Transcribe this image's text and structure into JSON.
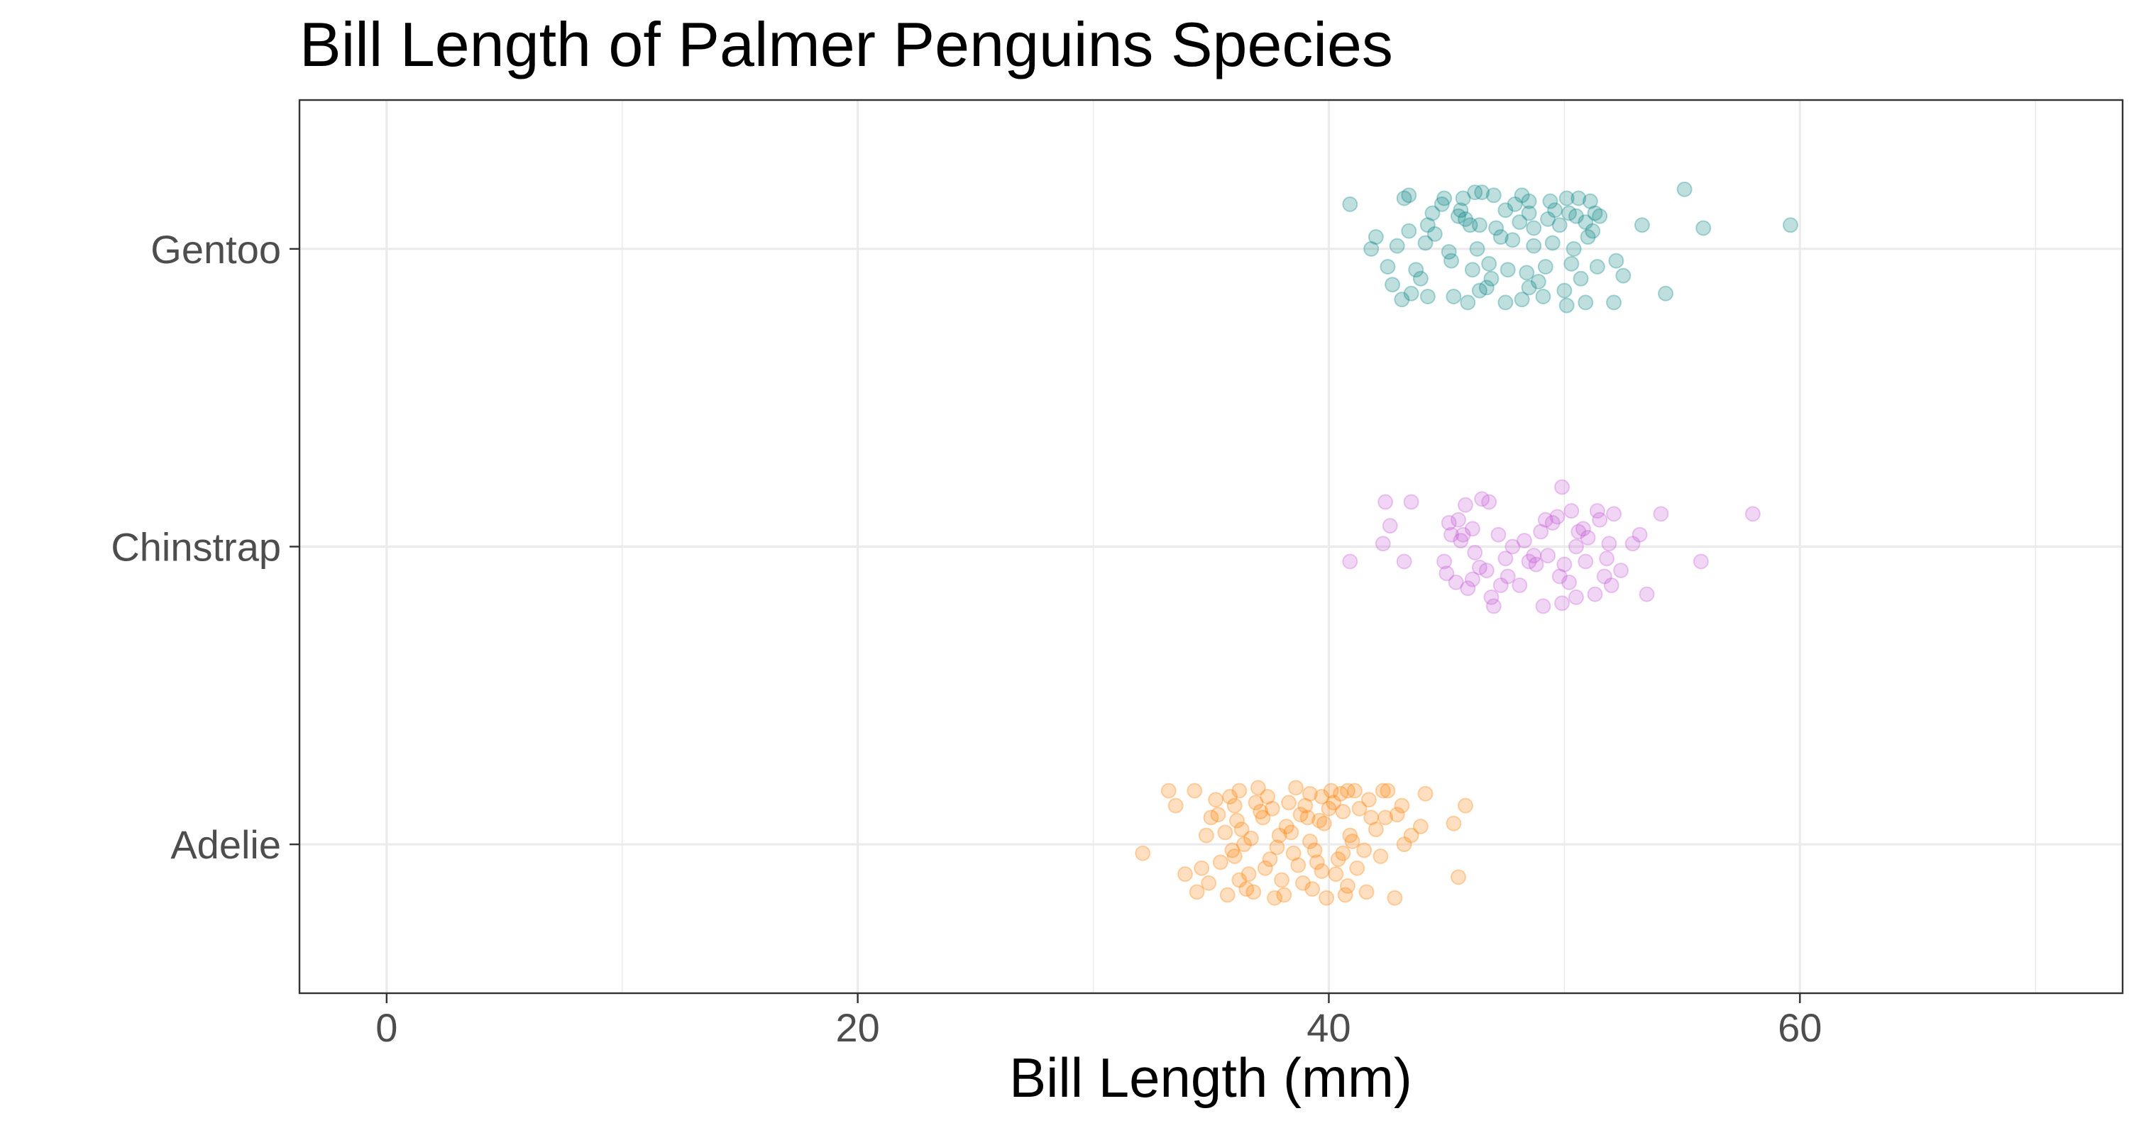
{
  "chart_data": {
    "type": "scatter",
    "title": "Bill Length of Palmer Penguins Species",
    "xlabel": "Bill Length (mm)",
    "ylabel": "",
    "xlim": [
      -3.7,
      73.7
    ],
    "x_ticks": [
      0,
      20,
      40,
      60
    ],
    "categories": [
      "Adelie",
      "Chinstrap",
      "Gentoo"
    ],
    "grid": true,
    "legend": "none",
    "point_alpha": 0.25,
    "series": [
      {
        "category": "Adelie",
        "color": "#ff7f00",
        "points": [
          [
            33.2,
            0.18
          ],
          [
            33.5,
            0.13
          ],
          [
            34.3,
            0.18
          ],
          [
            35.2,
            0.15
          ],
          [
            35.8,
            0.16
          ],
          [
            36.2,
            0.18
          ],
          [
            37.0,
            0.19
          ],
          [
            38.6,
            0.19
          ],
          [
            39.2,
            0.17
          ],
          [
            39.7,
            0.16
          ],
          [
            40.1,
            0.18
          ],
          [
            40.5,
            0.17
          ],
          [
            40.8,
            0.18
          ],
          [
            41.1,
            0.18
          ],
          [
            42.3,
            0.18
          ],
          [
            42.5,
            0.18
          ],
          [
            44.1,
            0.17
          ],
          [
            36.0,
            0.13
          ],
          [
            36.9,
            0.14
          ],
          [
            37.6,
            0.12
          ],
          [
            38.3,
            0.14
          ],
          [
            39.0,
            0.13
          ],
          [
            40.2,
            0.14
          ],
          [
            41.3,
            0.12
          ],
          [
            43.1,
            0.13
          ],
          [
            45.8,
            0.13
          ],
          [
            35.3,
            0.1
          ],
          [
            36.1,
            0.08
          ],
          [
            37.2,
            0.09
          ],
          [
            38.8,
            0.1
          ],
          [
            39.6,
            0.08
          ],
          [
            40.6,
            0.11
          ],
          [
            41.8,
            0.09
          ],
          [
            42.9,
            0.1
          ],
          [
            45.3,
            0.07
          ],
          [
            34.8,
            0.03
          ],
          [
            35.6,
            0.04
          ],
          [
            36.3,
            0.05
          ],
          [
            37.9,
            0.03
          ],
          [
            38.4,
            0.04
          ],
          [
            39.2,
            0.01
          ],
          [
            40.9,
            0.03
          ],
          [
            42.0,
            0.05
          ],
          [
            43.5,
            0.03
          ],
          [
            32.1,
            -0.03
          ],
          [
            35.9,
            -0.02
          ],
          [
            36.4,
            0.0
          ],
          [
            37.8,
            -0.01
          ],
          [
            39.4,
            -0.02
          ],
          [
            40.6,
            -0.03
          ],
          [
            41.5,
            -0.02
          ],
          [
            42.2,
            -0.04
          ],
          [
            43.2,
            0.0
          ],
          [
            34.6,
            -0.08
          ],
          [
            35.4,
            -0.06
          ],
          [
            36.6,
            -0.1
          ],
          [
            37.3,
            -0.08
          ],
          [
            38.7,
            -0.07
          ],
          [
            39.5,
            -0.06
          ],
          [
            40.3,
            -0.1
          ],
          [
            41.2,
            -0.08
          ],
          [
            45.5,
            -0.11
          ],
          [
            34.4,
            -0.16
          ],
          [
            35.7,
            -0.17
          ],
          [
            36.8,
            -0.16
          ],
          [
            37.7,
            -0.18
          ],
          [
            38.1,
            -0.17
          ],
          [
            39.3,
            -0.15
          ],
          [
            39.9,
            -0.18
          ],
          [
            40.7,
            -0.17
          ],
          [
            41.6,
            -0.16
          ],
          [
            42.8,
            -0.18
          ],
          [
            36.2,
            -0.12
          ],
          [
            38.9,
            -0.13
          ],
          [
            40.8,
            -0.14
          ],
          [
            34.9,
            -0.13
          ],
          [
            37.5,
            -0.05
          ],
          [
            38.2,
            0.06
          ],
          [
            39.8,
            0.07
          ],
          [
            41.0,
            0.01
          ],
          [
            36.7,
            0.02
          ],
          [
            38.0,
            -0.12
          ],
          [
            42.4,
            0.09
          ],
          [
            33.9,
            -0.1
          ],
          [
            39.1,
            0.09
          ],
          [
            40.4,
            -0.05
          ],
          [
            37.1,
            0.11
          ],
          [
            36.5,
            -0.15
          ],
          [
            41.7,
            0.15
          ],
          [
            38.5,
            -0.03
          ],
          [
            35.0,
            0.09
          ],
          [
            43.9,
            0.06
          ],
          [
            37.4,
            0.16
          ],
          [
            39.7,
            -0.09
          ],
          [
            40.0,
            0.12
          ],
          [
            36.0,
            -0.04
          ]
        ]
      },
      {
        "category": "Chinstrap",
        "color": "#c55ad5",
        "points": [
          [
            42.4,
            0.15
          ],
          [
            43.5,
            0.15
          ],
          [
            45.8,
            0.14
          ],
          [
            46.5,
            0.16
          ],
          [
            46.8,
            0.15
          ],
          [
            49.9,
            0.2
          ],
          [
            50.3,
            0.12
          ],
          [
            51.4,
            0.12
          ],
          [
            52.1,
            0.11
          ],
          [
            54.1,
            0.11
          ],
          [
            58.0,
            0.11
          ],
          [
            42.6,
            0.07
          ],
          [
            45.1,
            0.08
          ],
          [
            45.5,
            0.09
          ],
          [
            47.2,
            0.04
          ],
          [
            49.2,
            0.09
          ],
          [
            49.7,
            0.1
          ],
          [
            50.8,
            0.06
          ],
          [
            51.5,
            0.09
          ],
          [
            53.2,
            0.04
          ],
          [
            45.2,
            0.04
          ],
          [
            46.1,
            0.06
          ],
          [
            49.0,
            0.05
          ],
          [
            50.6,
            0.05
          ],
          [
            42.3,
            0.01
          ],
          [
            45.6,
            0.02
          ],
          [
            47.8,
            0.0
          ],
          [
            50.5,
            0.0
          ],
          [
            52.9,
            0.01
          ],
          [
            40.9,
            -0.05
          ],
          [
            43.2,
            -0.05
          ],
          [
            44.9,
            -0.05
          ],
          [
            46.4,
            -0.07
          ],
          [
            47.5,
            -0.04
          ],
          [
            48.5,
            -0.05
          ],
          [
            49.3,
            -0.03
          ],
          [
            50.9,
            -0.05
          ],
          [
            51.8,
            -0.04
          ],
          [
            55.8,
            -0.05
          ],
          [
            45.4,
            -0.12
          ],
          [
            46.1,
            -0.11
          ],
          [
            46.7,
            -0.08
          ],
          [
            47.6,
            -0.1
          ],
          [
            48.8,
            -0.06
          ],
          [
            49.8,
            -0.1
          ],
          [
            50.2,
            -0.12
          ],
          [
            51.7,
            -0.1
          ],
          [
            52.0,
            -0.13
          ],
          [
            53.5,
            -0.16
          ],
          [
            45.9,
            -0.14
          ],
          [
            46.9,
            -0.17
          ],
          [
            48.1,
            -0.13
          ],
          [
            49.1,
            -0.2
          ],
          [
            49.9,
            -0.19
          ],
          [
            50.5,
            -0.17
          ],
          [
            51.3,
            -0.16
          ],
          [
            47.0,
            -0.2
          ],
          [
            45.7,
            0.04
          ],
          [
            48.7,
            -0.03
          ],
          [
            51.0,
            0.03
          ],
          [
            46.2,
            -0.02
          ],
          [
            52.4,
            -0.08
          ],
          [
            49.5,
            0.08
          ],
          [
            47.3,
            -0.13
          ],
          [
            50.0,
            -0.06
          ],
          [
            45.0,
            -0.09
          ],
          [
            48.3,
            0.02
          ],
          [
            51.9,
            0.01
          ]
        ]
      },
      {
        "category": "Gentoo",
        "color": "#008080",
        "points": [
          [
            40.9,
            0.15
          ],
          [
            43.2,
            0.17
          ],
          [
            43.4,
            0.18
          ],
          [
            44.9,
            0.17
          ],
          [
            45.7,
            0.17
          ],
          [
            46.2,
            0.19
          ],
          [
            46.5,
            0.19
          ],
          [
            47.0,
            0.18
          ],
          [
            48.2,
            0.18
          ],
          [
            48.5,
            0.16
          ],
          [
            49.4,
            0.16
          ],
          [
            50.1,
            0.17
          ],
          [
            50.6,
            0.17
          ],
          [
            51.1,
            0.16
          ],
          [
            55.1,
            0.2
          ],
          [
            42.0,
            0.04
          ],
          [
            43.4,
            0.06
          ],
          [
            44.2,
            0.08
          ],
          [
            44.5,
            0.05
          ],
          [
            45.8,
            0.1
          ],
          [
            46.4,
            0.08
          ],
          [
            47.1,
            0.07
          ],
          [
            48.1,
            0.09
          ],
          [
            48.7,
            0.07
          ],
          [
            49.8,
            0.08
          ],
          [
            50.5,
            0.11
          ],
          [
            51.3,
            0.12
          ],
          [
            53.3,
            0.08
          ],
          [
            55.9,
            0.07
          ],
          [
            59.6,
            0.08
          ],
          [
            44.4,
            0.12
          ],
          [
            45.5,
            0.11
          ],
          [
            46.0,
            0.08
          ],
          [
            47.5,
            0.13
          ],
          [
            48.5,
            0.12
          ],
          [
            49.6,
            0.13
          ],
          [
            50.2,
            0.12
          ],
          [
            50.9,
            0.09
          ],
          [
            51.5,
            0.11
          ],
          [
            41.8,
            0.0
          ],
          [
            42.9,
            0.01
          ],
          [
            44.1,
            0.02
          ],
          [
            45.1,
            -0.01
          ],
          [
            46.3,
            0.0
          ],
          [
            47.8,
            0.03
          ],
          [
            48.7,
            0.01
          ],
          [
            49.5,
            0.02
          ],
          [
            50.4,
            0.0
          ],
          [
            51.0,
            0.04
          ],
          [
            42.5,
            -0.06
          ],
          [
            43.7,
            -0.07
          ],
          [
            45.2,
            -0.04
          ],
          [
            46.1,
            -0.07
          ],
          [
            46.8,
            -0.05
          ],
          [
            47.6,
            -0.07
          ],
          [
            48.4,
            -0.08
          ],
          [
            49.2,
            -0.06
          ],
          [
            50.3,
            -0.05
          ],
          [
            51.4,
            -0.06
          ],
          [
            52.2,
            -0.04
          ],
          [
            52.5,
            -0.09
          ],
          [
            54.3,
            -0.15
          ],
          [
            42.7,
            -0.12
          ],
          [
            43.5,
            -0.15
          ],
          [
            45.3,
            -0.16
          ],
          [
            46.4,
            -0.14
          ],
          [
            46.7,
            -0.13
          ],
          [
            47.5,
            -0.18
          ],
          [
            48.2,
            -0.17
          ],
          [
            49.1,
            -0.16
          ],
          [
            50.1,
            -0.19
          ],
          [
            50.9,
            -0.18
          ],
          [
            52.1,
            -0.18
          ],
          [
            44.2,
            -0.16
          ],
          [
            43.1,
            -0.17
          ],
          [
            45.9,
            -0.18
          ],
          [
            48.5,
            -0.13
          ],
          [
            50.0,
            -0.14
          ],
          [
            45.6,
            0.13
          ],
          [
            47.3,
            0.04
          ],
          [
            49.3,
            0.1
          ],
          [
            51.2,
            0.06
          ],
          [
            43.9,
            -0.1
          ],
          [
            46.9,
            -0.1
          ],
          [
            48.9,
            -0.11
          ],
          [
            44.8,
            0.15
          ],
          [
            47.9,
            0.15
          ],
          [
            50.7,
            -0.1
          ]
        ]
      }
    ]
  }
}
